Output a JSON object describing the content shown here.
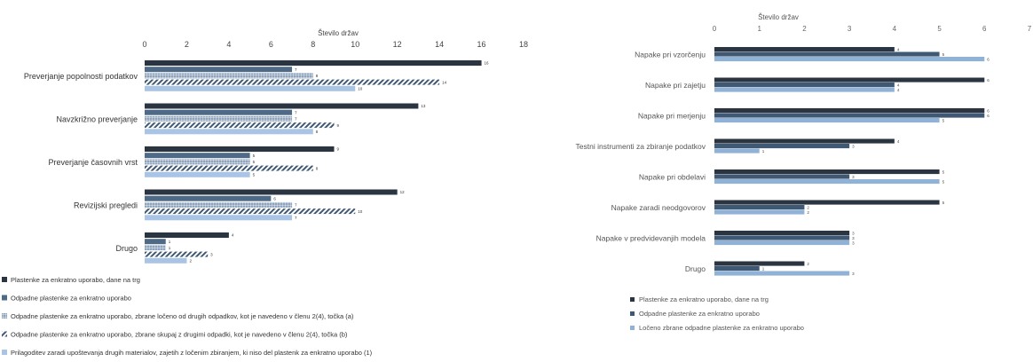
{
  "chart_data": [
    {
      "type": "bar",
      "orientation": "horizontal",
      "axis_title": "Število držav",
      "xlim": [
        0,
        18
      ],
      "ticks": [
        0,
        2,
        4,
        6,
        8,
        10,
        12,
        14,
        16,
        18
      ],
      "categories": [
        "Preverjanje popolnosti podatkov",
        "Navzkrižno preverjanje",
        "Preverjanje časovnih vrst",
        "Revizijski pregledi",
        "Drugo"
      ],
      "series": [
        {
          "name": "Plastenke za enkratno uporabo, dane na trg",
          "color": "#2b3441",
          "pattern": "solid",
          "values": [
            16,
            13,
            9,
            12,
            4
          ]
        },
        {
          "name": "Odpadne plastenke za enkratno uporabo",
          "color": "#4e6a86",
          "pattern": "solid",
          "values": [
            7,
            7,
            5,
            6,
            1
          ]
        },
        {
          "name": "Odpadne plastenke za enkratno uporabo, zbrane ločeno od drugih odpadkov, kot je navedeno v členu 2(4), točka (a)",
          "color": "#8ea3bd",
          "pattern": "grid",
          "values": [
            8,
            7,
            5,
            7,
            1
          ]
        },
        {
          "name": "Odpadne plastenke za enkratno uporabo, zbrane skupaj z drugimi odpadki, kot je navedeno v členu 2(4), točka (b)",
          "color": "#3f5873",
          "pattern": "diagonal",
          "values": [
            14,
            9,
            8,
            10,
            3
          ]
        },
        {
          "name": "Prilagoditev zaradi upoštevanja drugih materialov, zajetih z ločenim zbiranjem, ki niso del plastenk za enkratno uporabo (1)",
          "color": "#a9c4e4",
          "pattern": "solid",
          "values": [
            10,
            8,
            5,
            7,
            2
          ]
        }
      ],
      "legend_position": "bottom"
    },
    {
      "type": "bar",
      "orientation": "horizontal",
      "axis_title": "Število držav",
      "xlim": [
        0,
        7
      ],
      "ticks": [
        0,
        1,
        2,
        3,
        4,
        5,
        6,
        7
      ],
      "categories": [
        "Napake pri vzorčenju",
        "Napake pri zajetju",
        "Napake pri merjenju",
        "Testni instrumenti za zbiranje podatkov",
        "Napake pri obdelavi",
        "Napake zaradi neodgovorov",
        "Napake v predvidevanjih modela",
        "Drugo"
      ],
      "series": [
        {
          "name": "Plastenke za enkratno uporabo, dane na trg",
          "color": "#2b3441",
          "values": [
            4,
            6,
            6,
            4,
            5,
            5,
            3,
            2
          ]
        },
        {
          "name": "Odpadne plastenke za enkratno uporabo",
          "color": "#3f5873",
          "values": [
            5,
            4,
            6,
            3,
            3,
            2,
            3,
            1
          ]
        },
        {
          "name": "Ločeno zbrane odpadne plastenke za enkratno uporabo",
          "color": "#8fb2d6",
          "values": [
            6,
            4,
            5,
            1,
            5,
            2,
            3,
            3
          ]
        }
      ],
      "legend_position": "bottom"
    }
  ]
}
